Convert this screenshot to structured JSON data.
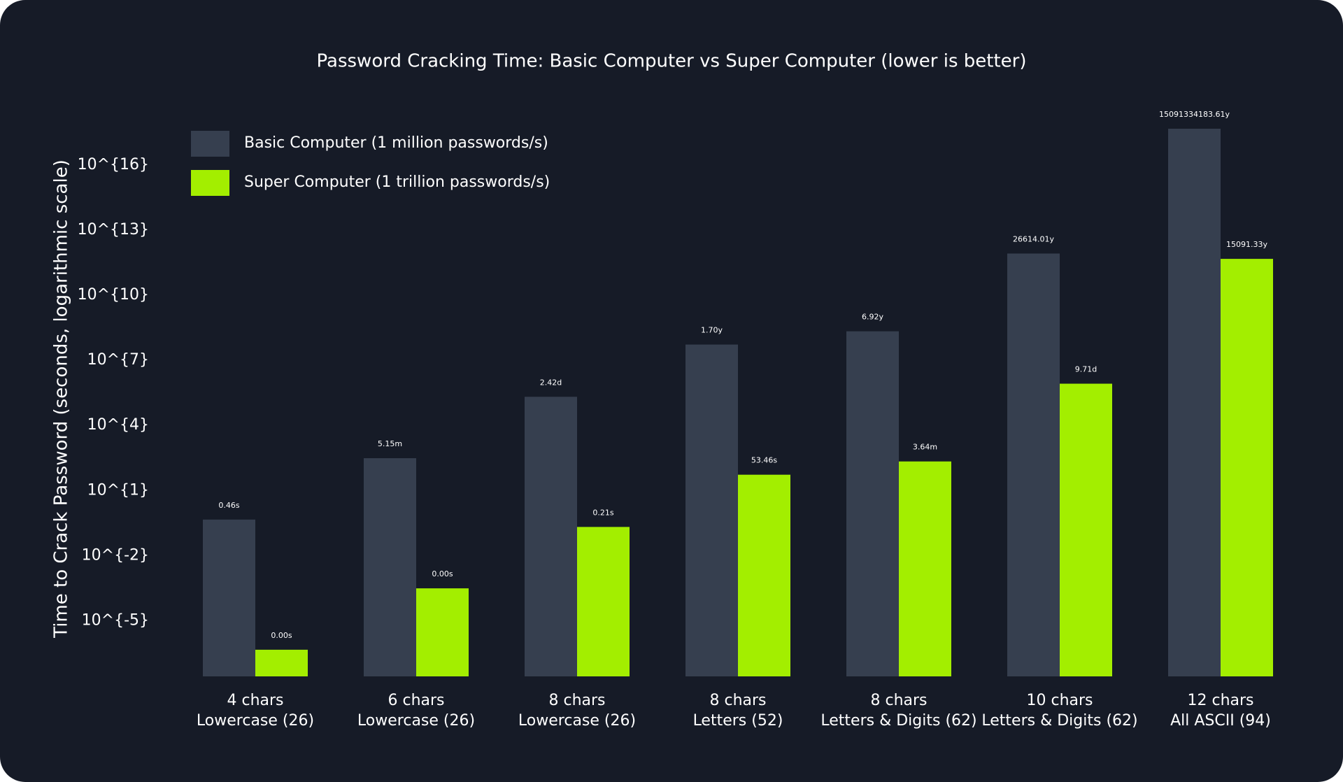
{
  "chart_data": {
    "type": "bar",
    "title": "Password Cracking Time: Basic Computer vs Super Computer (lower is better)",
    "y_label": "Time to Crack Password (seconds, logarithmic scale)",
    "log_scale": true,
    "legend": "upper left",
    "categories": [
      [
        "4 chars",
        "Lowercase (26)"
      ],
      [
        "6 chars",
        "Lowercase (26)"
      ],
      [
        "8 chars",
        "Lowercase (26)"
      ],
      [
        "8 chars",
        "Letters (52)"
      ],
      [
        "8 chars",
        "Letters & Digits (62)"
      ],
      [
        "10 chars",
        "Letters & Digits (62)"
      ],
      [
        "12 chars",
        "All ASCII (94)"
      ]
    ],
    "series": [
      {
        "name": "Basic Computer (1 million passwords/s)",
        "color": "#363f4f",
        "values": [
          0.456976,
          308.915776,
          208827.064576,
          53459728.5316,
          218340105.585,
          839299365868,
          475920314814253000
        ],
        "value_labels": [
          "0.46s",
          "5.15m",
          "2.42d",
          "1.70y",
          "6.92y",
          "26614.01y",
          "15091334183.61y"
        ]
      },
      {
        "name": "Super Computer (1 trillion passwords/s)",
        "color": "#a3ee00",
        "values": [
          4.56976e-07,
          0.000308915776,
          0.208827064576,
          53.4597285316,
          218.340105585,
          839299.365868,
          475920314814.253
        ],
        "value_labels": [
          "0.00s",
          "0.00s",
          "0.21s",
          "53.46s",
          "3.64m",
          "9.71d",
          "15091.33y"
        ]
      }
    ],
    "ylim": [
      2.7e-08,
      1e+19
    ],
    "yticks": [
      {
        "value": 1e-05,
        "label": "10^{-5}"
      },
      {
        "value": 0.01,
        "label": "10^{-2}"
      },
      {
        "value": 10,
        "label": "10^{1}"
      },
      {
        "value": 10000,
        "label": "10^{4}"
      },
      {
        "value": 10000000,
        "label": "10^{7}"
      },
      {
        "value": 10000000000,
        "label": "10^{10}"
      },
      {
        "value": 10000000000000,
        "label": "10^{13}"
      },
      {
        "value": 10000000000000000,
        "label": "10^{16}"
      }
    ]
  }
}
